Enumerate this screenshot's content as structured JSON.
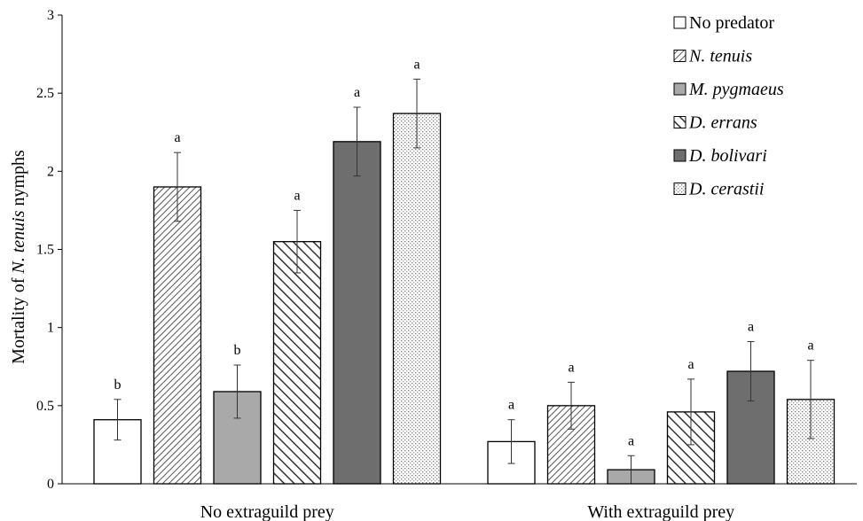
{
  "chart_data": {
    "type": "bar",
    "categories": [
      "No extraguild prey",
      "With extraguild prey"
    ],
    "ylabel_prefix": "Mortality of ",
    "ylabel_species": "N. tenuis",
    "ylabel_suffix": " nymphs",
    "ylim": [
      0,
      3
    ],
    "yticks": [
      "0",
      "0.5",
      "1",
      "1.5",
      "2",
      "2.5",
      "3"
    ],
    "ytick_values": [
      0,
      0.5,
      1,
      1.5,
      2,
      2.5,
      3
    ],
    "grid": false,
    "legend_position": "top-right",
    "series": [
      {
        "name": "No predator",
        "italic": false,
        "pattern": "white",
        "values": [
          0.41,
          0.27
        ],
        "errors": [
          0.13,
          0.14
        ],
        "letters": [
          "b",
          "a"
        ]
      },
      {
        "name": "N. tenuis",
        "italic": true,
        "pattern": "diag-dense",
        "values": [
          1.9,
          0.5
        ],
        "errors": [
          0.22,
          0.15
        ],
        "letters": [
          "a",
          "a"
        ]
      },
      {
        "name": "M. pygmaeus",
        "italic": true,
        "pattern": "lightgray",
        "values": [
          0.59,
          0.09
        ],
        "errors": [
          0.17,
          0.09
        ],
        "letters": [
          "b",
          "a"
        ]
      },
      {
        "name": "D. errans",
        "italic": true,
        "pattern": "diag-wide",
        "values": [
          1.55,
          0.46
        ],
        "errors": [
          0.2,
          0.21
        ],
        "letters": [
          "a",
          "a"
        ]
      },
      {
        "name": "D. bolivari",
        "italic": true,
        "pattern": "darkgray",
        "values": [
          2.19,
          0.72
        ],
        "errors": [
          0.22,
          0.19
        ],
        "letters": [
          "a",
          "a"
        ]
      },
      {
        "name": "D. cerastii",
        "italic": true,
        "pattern": "dots",
        "values": [
          2.37,
          0.54
        ],
        "errors": [
          0.22,
          0.25
        ],
        "letters": [
          "a",
          "a"
        ]
      }
    ]
  }
}
